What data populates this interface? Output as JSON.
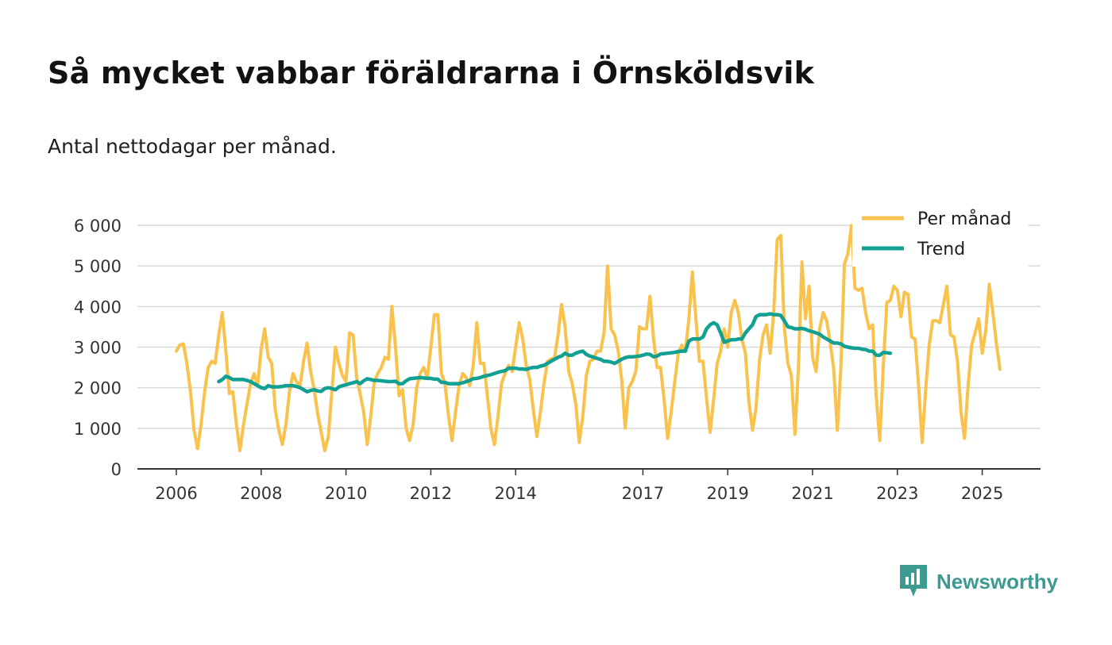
{
  "title": "Så mycket vabbar föräldrarna i Örnsköldsvik",
  "subtitle": "Antal nettodagar per månad.",
  "brand": "Newsworthy",
  "colors": {
    "monthly": "#f8c24d",
    "trend": "#12a092",
    "grid": "#d9d9d9",
    "axis": "#333333",
    "brand": "#3c9a91"
  },
  "chart_data": {
    "type": "line",
    "x_start_year": 2006,
    "x_step_months": 1,
    "ylim": [
      0,
      6000
    ],
    "yticks": [
      0,
      1000,
      2000,
      3000,
      4000,
      5000,
      6000
    ],
    "ytick_labels": [
      "0",
      "1 000",
      "2 000",
      "3 000",
      "4 000",
      "5 000",
      "6 000"
    ],
    "xticks": [
      2006,
      2008,
      2010,
      2012,
      2014,
      2017,
      2019,
      2021,
      2023,
      2025
    ],
    "xtick_labels": [
      "2006",
      "2008",
      "2010",
      "2012",
      "2014",
      "2017",
      "2019",
      "2021",
      "2023",
      "2025"
    ],
    "legend": {
      "position": "top-right",
      "entries": [
        "Per månad",
        "Trend"
      ]
    },
    "series": [
      {
        "name": "Per månad",
        "start_index": 0,
        "values": [
          2900,
          3050,
          3080,
          2600,
          1900,
          950,
          500,
          1100,
          1900,
          2500,
          2650,
          2600,
          3300,
          3850,
          2900,
          1850,
          1900,
          1100,
          450,
          1100,
          1600,
          2100,
          2350,
          2050,
          2950,
          3450,
          2750,
          2600,
          1450,
          950,
          600,
          1100,
          1900,
          2350,
          2150,
          2050,
          2650,
          3100,
          2400,
          1950,
          1350,
          900,
          450,
          800,
          1900,
          3000,
          2600,
          2300,
          2150,
          3350,
          3300,
          2250,
          1850,
          1400,
          600,
          1300,
          2150,
          2350,
          2500,
          2750,
          2700,
          4000,
          3000,
          1800,
          1950,
          1000,
          700,
          1100,
          2000,
          2350,
          2500,
          2250,
          3000,
          3800,
          3800,
          2350,
          2100,
          1300,
          700,
          1400,
          2050,
          2350,
          2250,
          2050,
          2550,
          3600,
          2600,
          2600,
          1800,
          1000,
          600,
          1300,
          2100,
          2350,
          2550,
          2400,
          3000,
          3600,
          3200,
          2550,
          2200,
          1450,
          800,
          1400,
          2100,
          2650,
          2700,
          2750,
          3300,
          4050,
          3500,
          2400,
          2100,
          1600,
          650,
          1300,
          2300,
          2650,
          2700,
          2900,
          2900,
          3350,
          5000,
          3450,
          3300,
          2900,
          2200,
          1000,
          2000,
          2150,
          2400,
          3500,
          3450,
          3450,
          4250,
          3200,
          2500,
          2500,
          1700,
          750,
          1400,
          2150,
          2850,
          3050,
          2900,
          3700,
          4850,
          3700,
          2650,
          2650,
          1750,
          900,
          1700,
          2600,
          2900,
          3450,
          3000,
          3850,
          4150,
          3850,
          3200,
          2850,
          1650,
          950,
          1500,
          2700,
          3300,
          3550,
          2850,
          3850,
          5650,
          5750,
          3500,
          2600,
          2300,
          850,
          2500,
          5100,
          3700,
          4500,
          2750,
          2400,
          3450,
          3850,
          3650,
          3100,
          2450,
          950,
          2500,
          5050,
          5300,
          6000,
          4450,
          4400,
          4450,
          3850,
          3450,
          3550,
          1800,
          700,
          2500,
          4100,
          4150,
          4500,
          4400,
          3750,
          4350,
          4300,
          3250,
          3200,
          2050,
          650,
          1950,
          3050,
          3650,
          3650,
          3600,
          4050,
          4500,
          3300,
          3250,
          2650,
          1400,
          750,
          2050,
          3050,
          3350,
          3700,
          2850,
          3400,
          4550,
          3850,
          3100,
          2450
        ]
      },
      {
        "name": "Trend",
        "start_index": 12,
        "values": [
          2150,
          2200,
          2280,
          2250,
          2200,
          2200,
          2200,
          2200,
          2180,
          2150,
          2100,
          2050,
          2000,
          1980,
          2050,
          2020,
          2020,
          2020,
          2030,
          2050,
          2050,
          2050,
          2030,
          2000,
          1950,
          1900,
          1930,
          1950,
          1920,
          1910,
          1980,
          2000,
          1980,
          1950,
          2020,
          2050,
          2070,
          2100,
          2120,
          2150,
          2100,
          2170,
          2220,
          2200,
          2180,
          2180,
          2170,
          2160,
          2150,
          2150,
          2160,
          2100,
          2100,
          2170,
          2220,
          2230,
          2240,
          2250,
          2240,
          2230,
          2230,
          2210,
          2210,
          2130,
          2130,
          2100,
          2100,
          2100,
          2100,
          2120,
          2150,
          2180,
          2220,
          2230,
          2250,
          2280,
          2300,
          2320,
          2350,
          2380,
          2400,
          2420,
          2480,
          2480,
          2480,
          2460,
          2460,
          2450,
          2480,
          2500,
          2500,
          2530,
          2550,
          2600,
          2650,
          2700,
          2750,
          2780,
          2850,
          2800,
          2800,
          2850,
          2880,
          2900,
          2820,
          2780,
          2750,
          2720,
          2700,
          2650,
          2650,
          2630,
          2600,
          2650,
          2700,
          2740,
          2760,
          2760,
          2770,
          2780,
          2800,
          2830,
          2820,
          2760,
          2780,
          2830,
          2840,
          2850,
          2860,
          2870,
          2890,
          2900,
          2900,
          3150,
          3200,
          3200,
          3200,
          3250,
          3450,
          3550,
          3600,
          3550,
          3350,
          3120,
          3150,
          3180,
          3180,
          3200,
          3200,
          3350,
          3450,
          3550,
          3750,
          3800,
          3800,
          3800,
          3820,
          3800,
          3800,
          3780,
          3650,
          3500,
          3480,
          3450,
          3450,
          3460,
          3440,
          3400,
          3380,
          3350,
          3320,
          3250,
          3200,
          3150,
          3100,
          3100,
          3080,
          3020,
          3000,
          2980,
          2970,
          2970,
          2950,
          2940,
          2900,
          2900,
          2800,
          2800,
          2870,
          2860,
          2850
        ]
      }
    ]
  }
}
